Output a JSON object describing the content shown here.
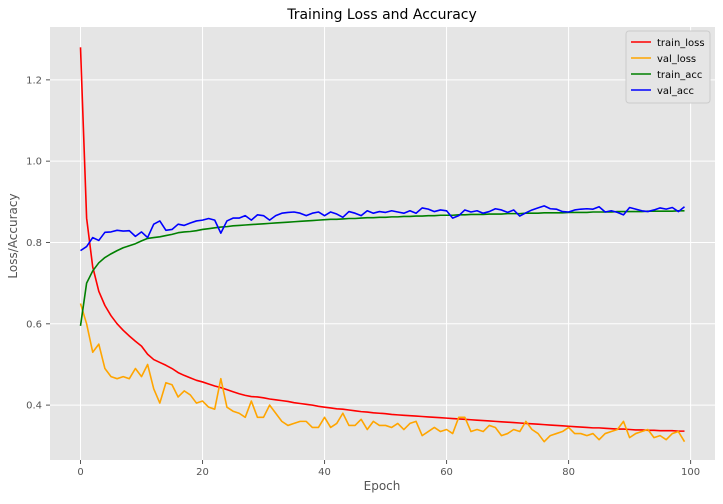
{
  "chart_data": {
    "type": "line",
    "title": "Training Loss and Accuracy",
    "xlabel": "Epoch",
    "ylabel": "Loss/Accuracy",
    "xlim": [
      -5,
      104
    ],
    "ylim": [
      0.265,
      1.33
    ],
    "xticks": [
      0,
      20,
      40,
      60,
      80,
      100
    ],
    "yticks": [
      0.4,
      0.6,
      0.8,
      1.0,
      1.2
    ],
    "ytick_labels": [
      "0.4",
      "0.6",
      "0.8",
      "1.0",
      "1.2"
    ],
    "grid": true,
    "background": "#e5e5e5",
    "legend_placement": "top-right",
    "series": [
      {
        "name": "train_loss",
        "color": "#ff0000",
        "values": [
          1.28,
          0.86,
          0.74,
          0.68,
          0.645,
          0.62,
          0.6,
          0.584,
          0.57,
          0.557,
          0.545,
          0.525,
          0.512,
          0.505,
          0.498,
          0.49,
          0.48,
          0.473,
          0.467,
          0.461,
          0.457,
          0.452,
          0.447,
          0.443,
          0.438,
          0.433,
          0.428,
          0.424,
          0.421,
          0.42,
          0.418,
          0.415,
          0.413,
          0.411,
          0.409,
          0.406,
          0.404,
          0.402,
          0.4,
          0.397,
          0.395,
          0.393,
          0.391,
          0.39,
          0.388,
          0.386,
          0.384,
          0.383,
          0.381,
          0.38,
          0.379,
          0.377,
          0.376,
          0.375,
          0.374,
          0.373,
          0.372,
          0.371,
          0.37,
          0.369,
          0.368,
          0.367,
          0.366,
          0.365,
          0.364,
          0.363,
          0.362,
          0.361,
          0.36,
          0.359,
          0.358,
          0.357,
          0.356,
          0.355,
          0.354,
          0.353,
          0.352,
          0.351,
          0.35,
          0.349,
          0.348,
          0.347,
          0.346,
          0.345,
          0.344,
          0.344,
          0.343,
          0.342,
          0.341,
          0.341,
          0.34,
          0.339,
          0.339,
          0.338,
          0.338,
          0.337,
          0.337,
          0.337,
          0.336,
          0.336
        ]
      },
      {
        "name": "val_loss",
        "color": "#ffa500",
        "values": [
          0.65,
          0.6,
          0.53,
          0.55,
          0.49,
          0.47,
          0.465,
          0.47,
          0.465,
          0.49,
          0.47,
          0.5,
          0.44,
          0.405,
          0.455,
          0.45,
          0.42,
          0.435,
          0.425,
          0.405,
          0.41,
          0.395,
          0.39,
          0.465,
          0.395,
          0.385,
          0.38,
          0.37,
          0.41,
          0.37,
          0.37,
          0.4,
          0.38,
          0.36,
          0.35,
          0.355,
          0.36,
          0.36,
          0.345,
          0.345,
          0.37,
          0.345,
          0.355,
          0.38,
          0.35,
          0.35,
          0.365,
          0.34,
          0.36,
          0.35,
          0.35,
          0.345,
          0.355,
          0.34,
          0.355,
          0.36,
          0.325,
          0.335,
          0.345,
          0.335,
          0.34,
          0.33,
          0.37,
          0.37,
          0.335,
          0.34,
          0.335,
          0.35,
          0.345,
          0.325,
          0.33,
          0.34,
          0.335,
          0.36,
          0.34,
          0.33,
          0.31,
          0.325,
          0.33,
          0.335,
          0.345,
          0.33,
          0.33,
          0.325,
          0.33,
          0.315,
          0.33,
          0.335,
          0.34,
          0.36,
          0.32,
          0.33,
          0.335,
          0.34,
          0.32,
          0.325,
          0.315,
          0.33,
          0.335,
          0.31
        ]
      },
      {
        "name": "train_acc",
        "color": "#008000",
        "values": [
          0.595,
          0.7,
          0.73,
          0.75,
          0.763,
          0.772,
          0.78,
          0.787,
          0.792,
          0.797,
          0.804,
          0.81,
          0.812,
          0.814,
          0.817,
          0.82,
          0.824,
          0.826,
          0.827,
          0.829,
          0.832,
          0.834,
          0.836,
          0.838,
          0.839,
          0.841,
          0.842,
          0.843,
          0.844,
          0.845,
          0.846,
          0.847,
          0.848,
          0.849,
          0.85,
          0.851,
          0.852,
          0.853,
          0.854,
          0.855,
          0.856,
          0.857,
          0.857,
          0.858,
          0.859,
          0.859,
          0.86,
          0.861,
          0.861,
          0.862,
          0.862,
          0.863,
          0.863,
          0.864,
          0.864,
          0.865,
          0.865,
          0.866,
          0.866,
          0.867,
          0.867,
          0.867,
          0.868,
          0.868,
          0.869,
          0.869,
          0.869,
          0.87,
          0.87,
          0.87,
          0.871,
          0.871,
          0.871,
          0.872,
          0.872,
          0.872,
          0.873,
          0.873,
          0.873,
          0.873,
          0.874,
          0.874,
          0.874,
          0.874,
          0.875,
          0.875,
          0.875,
          0.875,
          0.876,
          0.876,
          0.876,
          0.876,
          0.876,
          0.877,
          0.877,
          0.877,
          0.877,
          0.877,
          0.878,
          0.878
        ]
      },
      {
        "name": "val_acc",
        "color": "#0000ff",
        "values": [
          0.78,
          0.79,
          0.812,
          0.805,
          0.825,
          0.826,
          0.83,
          0.828,
          0.829,
          0.815,
          0.826,
          0.812,
          0.845,
          0.853,
          0.83,
          0.832,
          0.845,
          0.842,
          0.848,
          0.853,
          0.855,
          0.859,
          0.855,
          0.823,
          0.853,
          0.86,
          0.86,
          0.866,
          0.855,
          0.868,
          0.866,
          0.855,
          0.866,
          0.872,
          0.874,
          0.875,
          0.872,
          0.866,
          0.872,
          0.875,
          0.866,
          0.875,
          0.87,
          0.862,
          0.876,
          0.872,
          0.866,
          0.878,
          0.872,
          0.876,
          0.874,
          0.878,
          0.875,
          0.872,
          0.878,
          0.872,
          0.885,
          0.882,
          0.876,
          0.88,
          0.878,
          0.86,
          0.866,
          0.88,
          0.875,
          0.878,
          0.872,
          0.876,
          0.883,
          0.88,
          0.874,
          0.88,
          0.865,
          0.873,
          0.88,
          0.885,
          0.89,
          0.883,
          0.882,
          0.876,
          0.875,
          0.88,
          0.882,
          0.883,
          0.882,
          0.888,
          0.875,
          0.878,
          0.874,
          0.868,
          0.886,
          0.882,
          0.878,
          0.876,
          0.88,
          0.885,
          0.882,
          0.886,
          0.876,
          0.888
        ]
      }
    ]
  }
}
